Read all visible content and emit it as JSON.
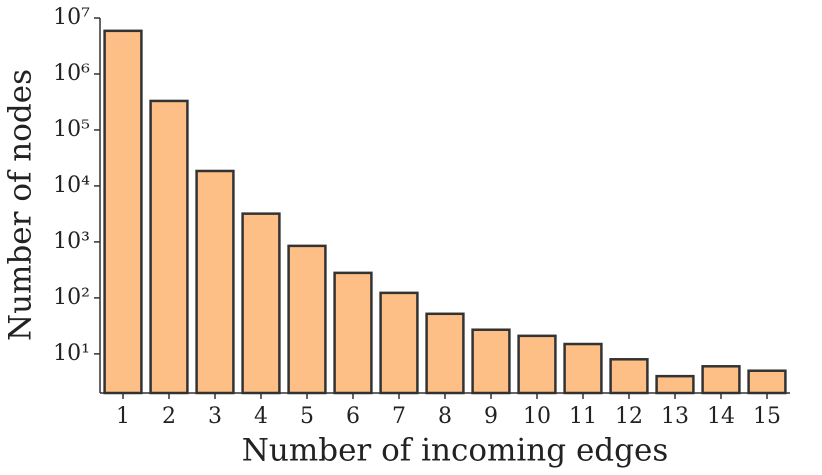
{
  "chart_data": {
    "type": "bar",
    "log_scale": true,
    "x_label": "Number of incoming edges",
    "y_label": "Number of nodes",
    "categories": [
      "1",
      "2",
      "3",
      "4",
      "5",
      "6",
      "7",
      "8",
      "9",
      "10",
      "11",
      "12",
      "13",
      "14",
      "15"
    ],
    "values": [
      5900000,
      330000,
      18500,
      3200,
      850,
      280,
      123,
      52,
      27,
      21,
      15,
      8,
      4,
      6,
      5
    ],
    "color": "#fdbf86",
    "edge_color": "#333333",
    "ylim": [
      2,
      10000000
    ],
    "yticks": [
      {
        "value": 10,
        "label": "10¹"
      },
      {
        "value": 100,
        "label": "10²"
      },
      {
        "value": 1000,
        "label": "10³"
      },
      {
        "value": 10000,
        "label": "10⁴"
      },
      {
        "value": 100000,
        "label": "10⁵"
      },
      {
        "value": 1000000,
        "label": "10⁶"
      },
      {
        "value": 10000000,
        "label": "10⁷"
      }
    ]
  }
}
